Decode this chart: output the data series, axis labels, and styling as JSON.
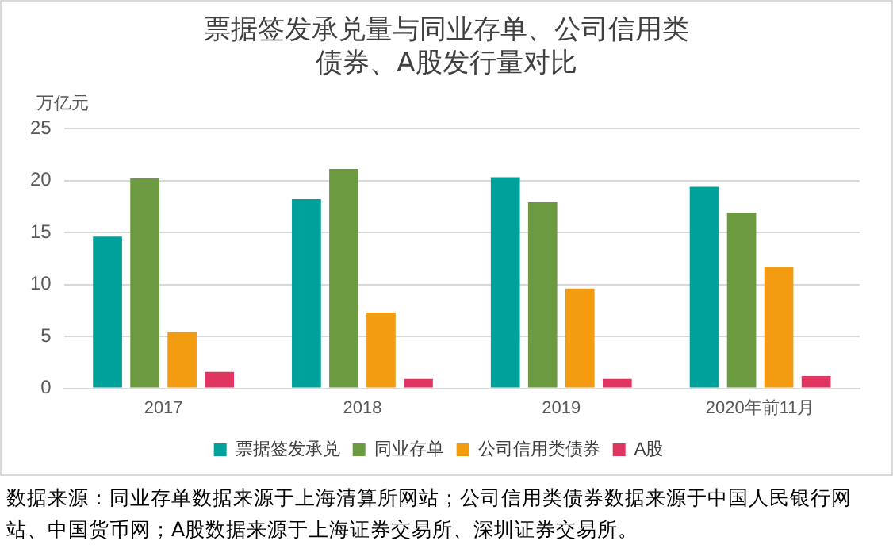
{
  "chart_data": {
    "type": "bar",
    "title": "票据签发承兑量与同业存单、公司信用类债券、A股发行量对比",
    "ylabel": "万亿元",
    "categories": [
      "2017",
      "2018",
      "2019",
      "2020年前11月"
    ],
    "series": [
      {
        "name": "票据签发承兑",
        "color": "#00a19a",
        "values": [
          14.6,
          18.2,
          20.3,
          19.4
        ]
      },
      {
        "name": "同业存单",
        "color": "#6c9a41",
        "values": [
          20.2,
          21.1,
          17.9,
          16.9
        ]
      },
      {
        "name": "公司信用类债券",
        "color": "#f39c12",
        "values": [
          5.4,
          7.3,
          9.6,
          11.7
        ]
      },
      {
        "name": "A股",
        "color": "#e03560",
        "values": [
          1.6,
          0.9,
          0.9,
          1.2
        ]
      }
    ],
    "ylim": [
      0,
      25
    ],
    "yticks": [
      0,
      5,
      10,
      15,
      20,
      25
    ],
    "grid": "y",
    "legend": "bottom",
    "annotations": [
      "数据来源：同业存单数据来源于上海清算所网站；公司信用类债券数据来源于中国人民银行网站、中国货币网；A股数据来源于上海证券交易所、深圳证券交易所。"
    ]
  }
}
